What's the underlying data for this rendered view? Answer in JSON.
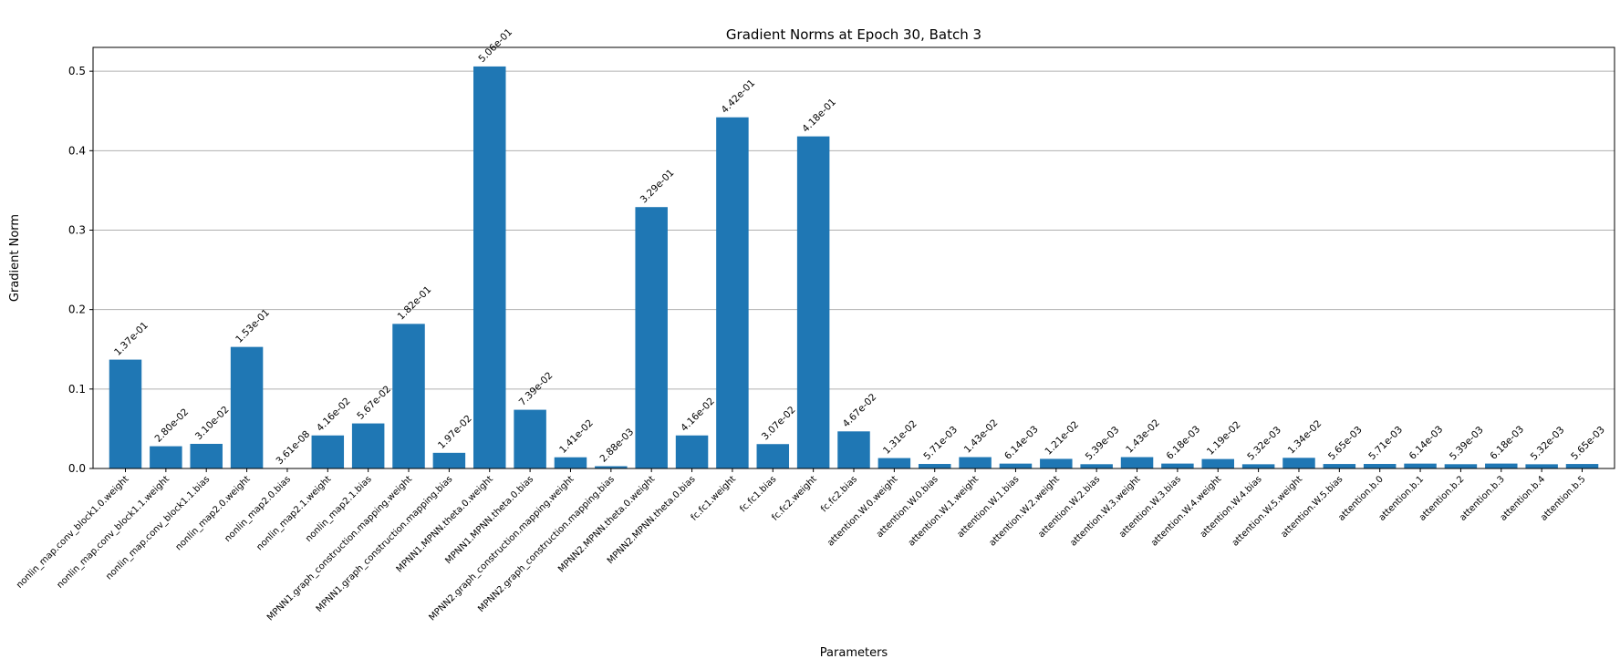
{
  "chart_data": {
    "type": "bar",
    "title": "Gradient Norms at Epoch 30, Batch 3",
    "xlabel": "Parameters",
    "ylabel": "Gradient Norm",
    "ylim": [
      0,
      0.53
    ],
    "yticks": [
      "0.0",
      "0.1",
      "0.2",
      "0.3",
      "0.4",
      "0.5"
    ],
    "ytick_values": [
      0,
      0.1,
      0.2,
      0.3,
      0.4,
      0.5
    ],
    "grid": "horizontal",
    "bar_color": "#1f77b4",
    "categories": [
      "nonlin_map.conv_block1.0.weight",
      "nonlin_map.conv_block1.1.weight",
      "nonlin_map.conv_block1.1.bias",
      "nonlin_map2.0.weight",
      "nonlin_map2.0.bias",
      "nonlin_map2.1.weight",
      "nonlin_map2.1.bias",
      "MPNN1.graph_construction.mapping.weight",
      "MPNN1.graph_construction.mapping.bias",
      "MPNN1.MPNN.theta.0.weight",
      "MPNN1.MPNN.theta.0.bias",
      "MPNN2.graph_construction.mapping.weight",
      "MPNN2.graph_construction.mapping.bias",
      "MPNN2.MPNN.theta.0.weight",
      "MPNN2.MPNN.theta.0.bias",
      "fc.fc1.weight",
      "fc.fc1.bias",
      "fc.fc2.weight",
      "fc.fc2.bias",
      "attention.W.0.weight",
      "attention.W.0.bias",
      "attention.W.1.weight",
      "attention.W.1.bias",
      "attention.W.2.weight",
      "attention.W.2.bias",
      "attention.W.3.weight",
      "attention.W.3.bias",
      "attention.W.4.weight",
      "attention.W.4.bias",
      "attention.W.5.weight",
      "attention.W.5.bias",
      "attention.b.0",
      "attention.b.1",
      "attention.b.2",
      "attention.b.3",
      "attention.b.4",
      "attention.b.5"
    ],
    "values": [
      0.137,
      0.028,
      0.031,
      0.153,
      3.61e-08,
      0.0416,
      0.0567,
      0.182,
      0.0197,
      0.506,
      0.0739,
      0.0141,
      0.00288,
      0.329,
      0.0416,
      0.442,
      0.0307,
      0.418,
      0.0467,
      0.0131,
      0.00571,
      0.0143,
      0.00614,
      0.0121,
      0.00539,
      0.0143,
      0.00618,
      0.0119,
      0.00532,
      0.0134,
      0.00565,
      0.00571,
      0.00614,
      0.00539,
      0.00618,
      0.00532,
      0.00565
    ],
    "value_labels": [
      "1.37e-01",
      "2.80e-02",
      "3.10e-02",
      "1.53e-01",
      "3.61e-08",
      "4.16e-02",
      "5.67e-02",
      "1.82e-01",
      "1.97e-02",
      "5.06e-01",
      "7.39e-02",
      "1.41e-02",
      "2.88e-03",
      "3.29e-01",
      "4.16e-02",
      "4.42e-01",
      "3.07e-02",
      "4.18e-01",
      "4.67e-02",
      "1.31e-02",
      "5.71e-03",
      "1.43e-02",
      "6.14e-03",
      "1.21e-02",
      "5.39e-03",
      "1.43e-02",
      "6.18e-03",
      "1.19e-02",
      "5.32e-03",
      "1.34e-02",
      "5.65e-03",
      "5.71e-03",
      "6.14e-03",
      "5.39e-03",
      "6.18e-03",
      "5.32e-03",
      "5.65e-03"
    ]
  }
}
